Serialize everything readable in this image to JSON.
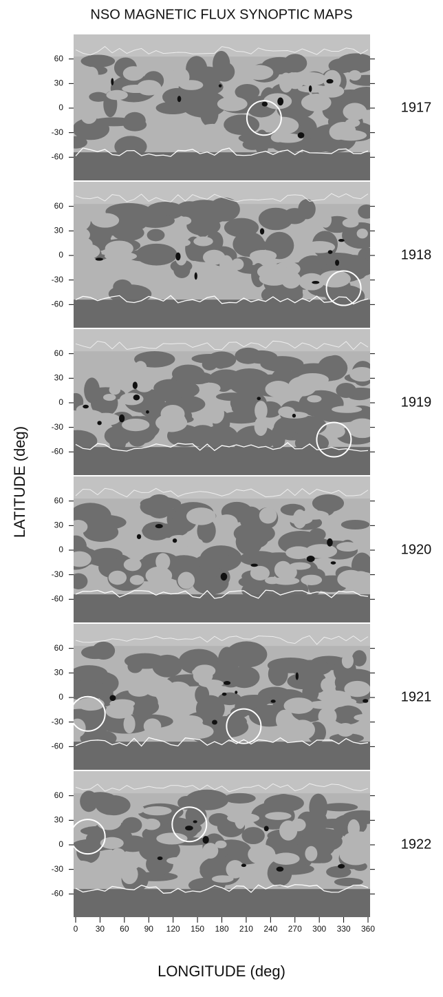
{
  "chart_data": {
    "type": "synoptic-maps",
    "title": "NSO MAGNETIC FLUX SYNOPTIC MAPS",
    "x_label": "LONGITUDE (deg)",
    "y_label": "LATITUDE (deg)",
    "xlim": [
      0,
      360
    ],
    "xticks": [
      0,
      30,
      60,
      90,
      120,
      150,
      180,
      210,
      240,
      270,
      300,
      330,
      360
    ],
    "ylim": [
      -90,
      90
    ],
    "yticks": [
      -60,
      -30,
      0,
      30,
      60
    ],
    "panels": [
      {
        "label": "1917",
        "circles": [
          {
            "lon": 232,
            "lat": -12
          }
        ]
      },
      {
        "label": "1918",
        "circles": [
          {
            "lon": 330,
            "lat": -40
          }
        ]
      },
      {
        "label": "1919",
        "circles": [
          {
            "lon": 318,
            "lat": -45
          }
        ]
      },
      {
        "label": "1920",
        "circles": []
      },
      {
        "label": "1921",
        "circles": [
          {
            "lon": 15,
            "lat": -20
          },
          {
            "lon": 207,
            "lat": -35
          }
        ]
      },
      {
        "label": "1922",
        "circles": [
          {
            "lon": 15,
            "lat": 10
          },
          {
            "lon": 140,
            "lat": 25
          }
        ]
      }
    ]
  }
}
